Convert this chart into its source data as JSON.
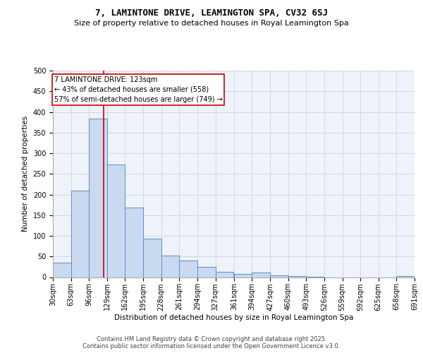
{
  "title": "7, LAMINTONE DRIVE, LEAMINGTON SPA, CV32 6SJ",
  "subtitle": "Size of property relative to detached houses in Royal Leamington Spa",
  "xlabel": "Distribution of detached houses by size in Royal Leamington Spa",
  "ylabel": "Number of detached properties",
  "footer": "Contains HM Land Registry data © Crown copyright and database right 2025.\nContains public sector information licensed under the Open Government Licence v3.0.",
  "bin_labels": [
    "30sqm",
    "63sqm",
    "96sqm",
    "129sqm",
    "162sqm",
    "195sqm",
    "228sqm",
    "261sqm",
    "294sqm",
    "327sqm",
    "361sqm",
    "394sqm",
    "427sqm",
    "460sqm",
    "493sqm",
    "526sqm",
    "559sqm",
    "592sqm",
    "625sqm",
    "658sqm",
    "691sqm"
  ],
  "bin_edges": [
    30,
    63,
    96,
    129,
    162,
    195,
    228,
    261,
    294,
    327,
    361,
    394,
    427,
    460,
    493,
    526,
    559,
    592,
    625,
    658,
    691
  ],
  "bar_heights": [
    35,
    210,
    383,
    272,
    168,
    93,
    52,
    40,
    25,
    13,
    8,
    11,
    5,
    3,
    1,
    0,
    0,
    0,
    0,
    3
  ],
  "bar_color": "#c9d9f0",
  "bar_edge_color": "#5b8fc9",
  "grid_color": "#d0d8e8",
  "bg_color": "#eef2f9",
  "red_line_x": 123,
  "annotation_text": "7 LAMINTONE DRIVE: 123sqm\n← 43% of detached houses are smaller (558)\n57% of semi-detached houses are larger (749) →",
  "annotation_box_color": "#ffffff",
  "annotation_border_color": "#cc0000",
  "ylim": [
    0,
    500
  ],
  "property_size": 123,
  "title_fontsize": 9,
  "subtitle_fontsize": 8,
  "footer_fontsize": 6,
  "annotation_fontsize": 7,
  "axis_label_fontsize": 7.5,
  "tick_fontsize": 7
}
